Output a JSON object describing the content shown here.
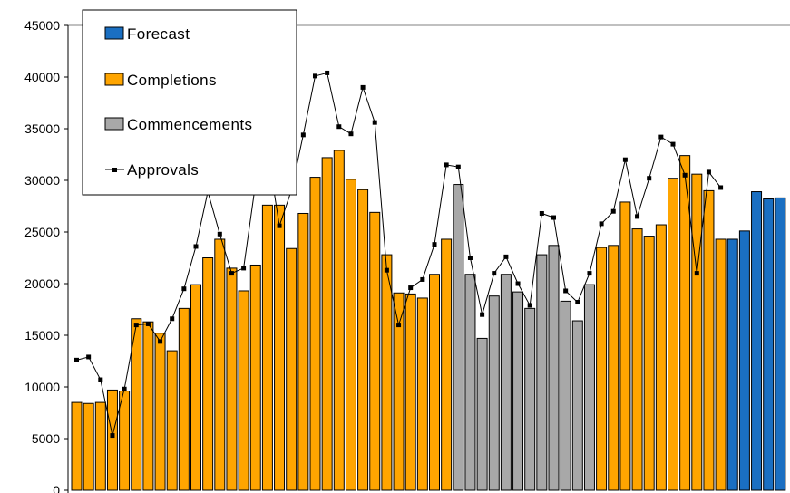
{
  "chart_data": {
    "type": "bar",
    "ylim": [
      0,
      45000
    ],
    "yticks": [
      "0",
      "5000",
      "10000",
      "15000",
      "20000",
      "25000",
      "30000",
      "35000",
      "40000",
      "45000"
    ],
    "grid": false,
    "legend_position": "top-left",
    "colors": {
      "Forecast": "#1a6fc2",
      "Completions": "#ffa500",
      "Commencements": "#a8a8a8",
      "Approvals": "#000000"
    },
    "legend": [
      {
        "name": "Forecast",
        "kind": "bar"
      },
      {
        "name": "Completions",
        "kind": "bar"
      },
      {
        "name": "Commencements",
        "kind": "bar"
      },
      {
        "name": "Approvals",
        "kind": "line"
      }
    ],
    "bars": [
      {
        "value": 8500,
        "series": "Completions"
      },
      {
        "value": 8400,
        "series": "Completions"
      },
      {
        "value": 8500,
        "series": "Completions"
      },
      {
        "value": 9700,
        "series": "Completions"
      },
      {
        "value": 9600,
        "series": "Completions"
      },
      {
        "value": 16600,
        "series": "Completions"
      },
      {
        "value": 16300,
        "series": "Completions"
      },
      {
        "value": 15200,
        "series": "Completions"
      },
      {
        "value": 13500,
        "series": "Completions"
      },
      {
        "value": 17600,
        "series": "Completions"
      },
      {
        "value": 19900,
        "series": "Completions"
      },
      {
        "value": 22500,
        "series": "Completions"
      },
      {
        "value": 24300,
        "series": "Completions"
      },
      {
        "value": 21500,
        "series": "Completions"
      },
      {
        "value": 19300,
        "series": "Completions"
      },
      {
        "value": 21800,
        "series": "Completions"
      },
      {
        "value": 27600,
        "series": "Completions"
      },
      {
        "value": 27600,
        "series": "Completions"
      },
      {
        "value": 23400,
        "series": "Completions"
      },
      {
        "value": 26800,
        "series": "Completions"
      },
      {
        "value": 30300,
        "series": "Completions"
      },
      {
        "value": 32200,
        "series": "Completions"
      },
      {
        "value": 32900,
        "series": "Completions"
      },
      {
        "value": 30100,
        "series": "Completions"
      },
      {
        "value": 29100,
        "series": "Completions"
      },
      {
        "value": 26900,
        "series": "Completions"
      },
      {
        "value": 22800,
        "series": "Completions"
      },
      {
        "value": 19100,
        "series": "Completions"
      },
      {
        "value": 19000,
        "series": "Completions"
      },
      {
        "value": 18600,
        "series": "Completions"
      },
      {
        "value": 20900,
        "series": "Completions"
      },
      {
        "value": 24300,
        "series": "Completions"
      },
      {
        "value": 29600,
        "series": "Commencements"
      },
      {
        "value": 20900,
        "series": "Commencements"
      },
      {
        "value": 14700,
        "series": "Commencements"
      },
      {
        "value": 18800,
        "series": "Commencements"
      },
      {
        "value": 20900,
        "series": "Commencements"
      },
      {
        "value": 19200,
        "series": "Commencements"
      },
      {
        "value": 17600,
        "series": "Commencements"
      },
      {
        "value": 22800,
        "series": "Commencements"
      },
      {
        "value": 23700,
        "series": "Commencements"
      },
      {
        "value": 18300,
        "series": "Commencements"
      },
      {
        "value": 16400,
        "series": "Commencements"
      },
      {
        "value": 19900,
        "series": "Commencements"
      },
      {
        "value": 23500,
        "series": "Completions"
      },
      {
        "value": 23700,
        "series": "Completions"
      },
      {
        "value": 27900,
        "series": "Completions"
      },
      {
        "value": 25300,
        "series": "Completions"
      },
      {
        "value": 24600,
        "series": "Completions"
      },
      {
        "value": 25700,
        "series": "Completions"
      },
      {
        "value": 30200,
        "series": "Completions"
      },
      {
        "value": 32400,
        "series": "Completions"
      },
      {
        "value": 30600,
        "series": "Completions"
      },
      {
        "value": 29000,
        "series": "Completions"
      },
      {
        "value": 24300,
        "series": "Completions"
      },
      {
        "value": 24300,
        "series": "Forecast"
      },
      {
        "value": 25100,
        "series": "Forecast"
      },
      {
        "value": 28900,
        "series": "Forecast"
      },
      {
        "value": 28200,
        "series": "Forecast"
      },
      {
        "value": 28300,
        "series": "Forecast"
      }
    ],
    "approvals": [
      12600,
      12900,
      10700,
      5300,
      9800,
      16000,
      16100,
      14400,
      16600,
      19500,
      23600,
      28900,
      24800,
      21000,
      21500,
      29700,
      33000,
      25600,
      29000,
      34400,
      40100,
      40400,
      35200,
      34500,
      39000,
      35600,
      21300,
      16000,
      19600,
      20400,
      23800,
      31500,
      31300,
      22500,
      17000,
      21000,
      22600,
      20000,
      17900,
      26800,
      26400,
      19300,
      18200,
      21000,
      25800,
      27000,
      32000,
      26500,
      30200,
      34200,
      33500,
      30500,
      21000,
      30800,
      29300
    ]
  }
}
